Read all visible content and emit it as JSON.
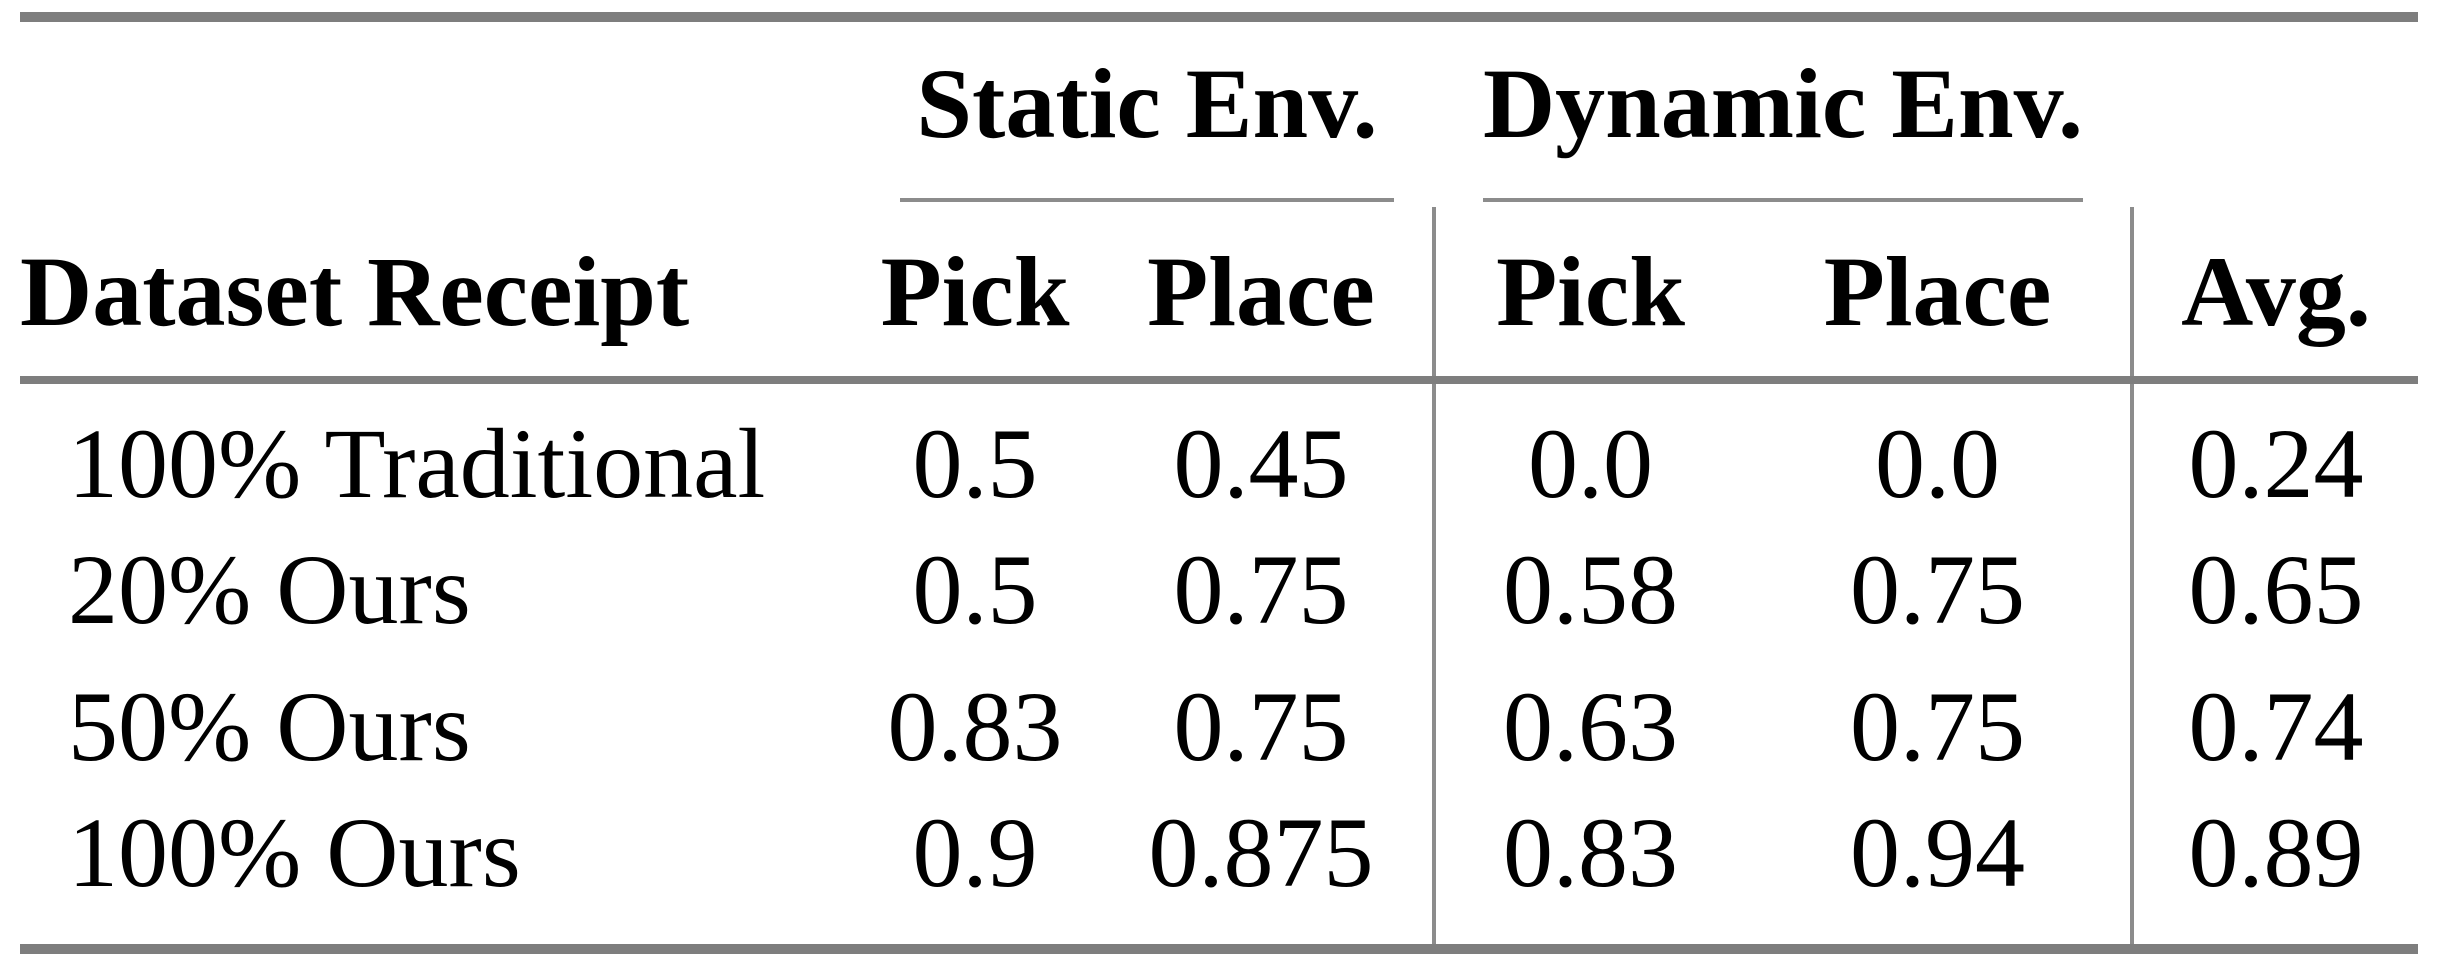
{
  "colors": {
    "heavy_rule": "#7e7e7e",
    "light_rule": "#8c8c8c",
    "text": "#000000",
    "background": "#ffffff"
  },
  "table": {
    "group_header": {
      "static": "Static Env.",
      "dynamic": "Dynamic Env."
    },
    "columns": {
      "label": "Dataset Receipt",
      "static_pick": "Pick",
      "static_place": "Place",
      "dynamic_pick": "Pick",
      "dynamic_place": "Place",
      "avg": "Avg."
    },
    "rows": [
      {
        "label": "100% Traditional",
        "static_pick": "0.5",
        "static_place": "0.45",
        "dynamic_pick": "0.0",
        "dynamic_place": "0.0",
        "avg": "0.24"
      },
      {
        "label": "20% Ours",
        "static_pick": "0.5",
        "static_place": "0.75",
        "dynamic_pick": "0.58",
        "dynamic_place": "0.75",
        "avg": "0.65"
      },
      {
        "label": "50% Ours",
        "static_pick": "0.83",
        "static_place": "0.75",
        "dynamic_pick": "0.63",
        "dynamic_place": "0.75",
        "avg": "0.74"
      },
      {
        "label": "100% Ours",
        "static_pick": "0.9",
        "static_place": "0.875",
        "dynamic_pick": "0.83",
        "dynamic_place": "0.94",
        "avg": "0.89"
      }
    ]
  },
  "chart_data": {
    "type": "table",
    "columns": [
      "Dataset Receipt",
      "Static Env. Pick",
      "Static Env. Place",
      "Dynamic Env. Pick",
      "Dynamic Env. Place",
      "Avg."
    ],
    "rows": [
      [
        "100% Traditional",
        0.5,
        0.45,
        0.0,
        0.0,
        0.24
      ],
      [
        "20% Ours",
        0.5,
        0.75,
        0.58,
        0.75,
        0.65
      ],
      [
        "50% Ours",
        0.83,
        0.75,
        0.63,
        0.75,
        0.74
      ],
      [
        "100% Ours",
        0.9,
        0.875,
        0.83,
        0.94,
        0.89
      ]
    ]
  }
}
